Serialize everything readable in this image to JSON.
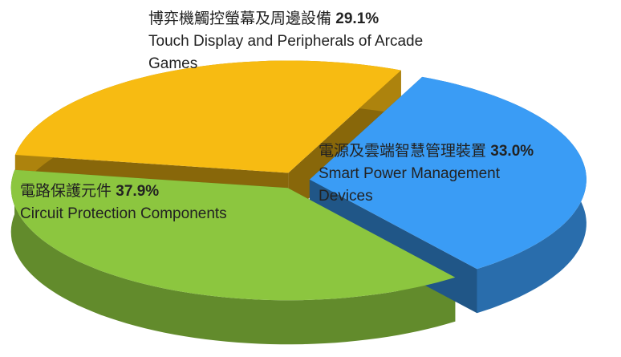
{
  "chart_data": {
    "type": "pie",
    "categories": [
      "電源及雲端智慧管理裝置",
      "電路保護元件",
      "博弈機觸控螢幕及周邊設備"
    ],
    "labels_en": [
      "Smart Power Management Devices",
      "Circuit Protection Components",
      "Touch Display and Peripherals of Arcade Games"
    ],
    "values": [
      33.0,
      37.9,
      29.1
    ],
    "value_labels": [
      "33.0%",
      "37.9%",
      "29.1%"
    ],
    "colors": [
      "#3a9cf5",
      "#8cc63f",
      "#f7bb12"
    ]
  }
}
